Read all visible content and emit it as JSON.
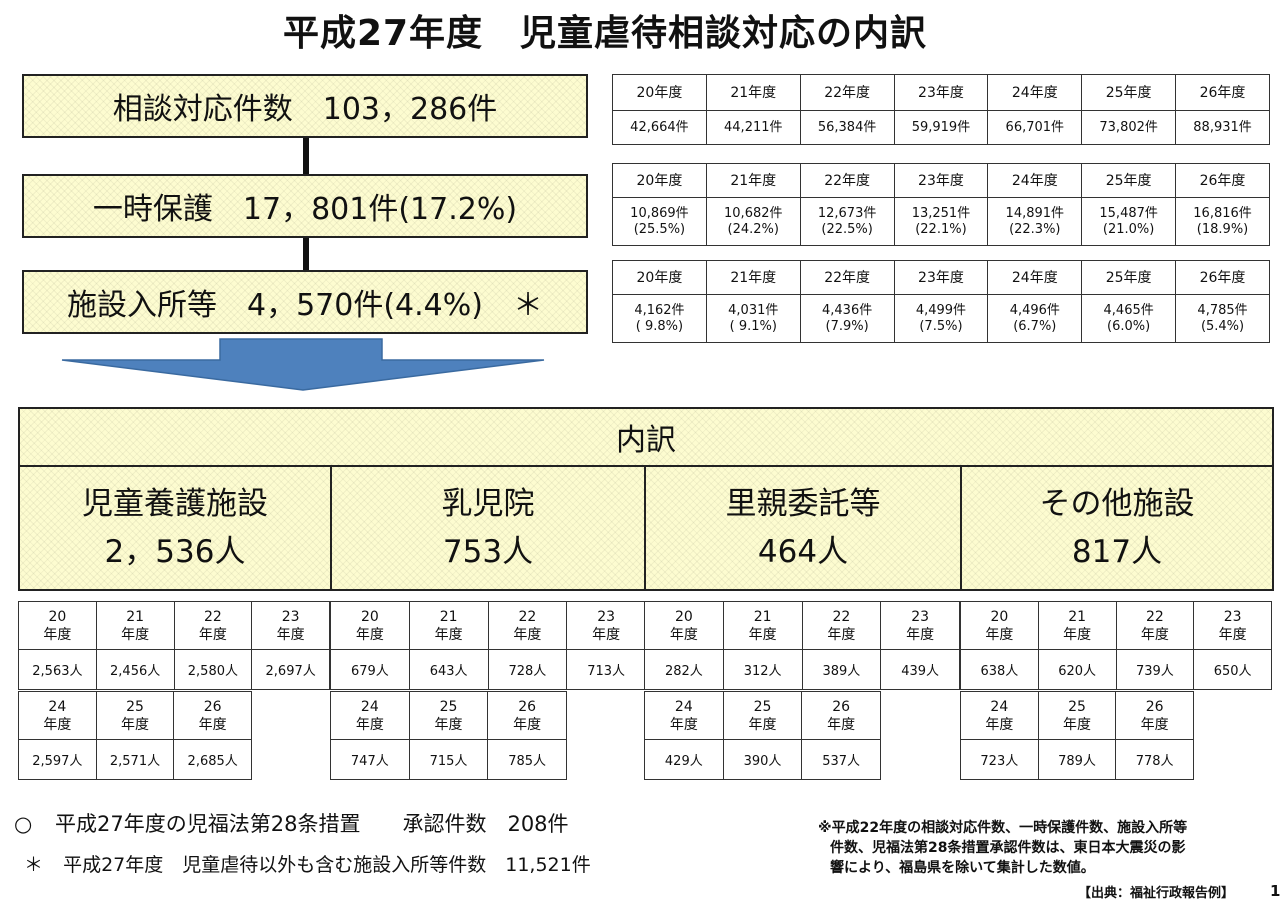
{
  "title": "平成27年度　児童虐待相談対応の内訳",
  "boxes": {
    "consult": "相談対応件数　103，286件",
    "protect": "一時保護　17，801件(17.2%)",
    "facility": "施設入所等　4，570件(4.4%)　＊"
  },
  "year_headers": [
    "20年度",
    "21年度",
    "22年度",
    "23年度",
    "24年度",
    "25年度",
    "26年度"
  ],
  "consult_table": [
    "42,664件",
    "44,211件",
    "56,384件",
    "59,919件",
    "66,701件",
    "73,802件",
    "88,931件"
  ],
  "protect_table": {
    "counts": [
      "10,869件",
      "10,682件",
      "12,673件",
      "13,251件",
      "14,891件",
      "15,487件",
      "16,816件"
    ],
    "pcts": [
      "(25.5%)",
      "(24.2%)",
      "(22.5%)",
      "(22.1%)",
      "(22.3%)",
      "(21.0%)",
      "(18.9%)"
    ]
  },
  "facility_table": {
    "counts": [
      "4,162件",
      "4,031件",
      "4,436件",
      "4,499件",
      "4,496件",
      "4,465件",
      "4,785件"
    ],
    "pcts": [
      "( 9.8%)",
      "( 9.1%)",
      "(7.9%)",
      "(7.5%)",
      "(6.7%)",
      "(6.0%)",
      "(5.4%)"
    ]
  },
  "breakdown": {
    "header": "内訳",
    "categories": [
      {
        "name": "児童養護施設",
        "value": "2，536人",
        "row1": [
          "2,563人",
          "2,456人",
          "2,580人",
          "2,697人"
        ],
        "row2": [
          "2,597人",
          "2,571人",
          "2,685人"
        ]
      },
      {
        "name": "乳児院",
        "value": "753人",
        "row1": [
          "679人",
          "643人",
          "728人",
          "713人"
        ],
        "row2": [
          "747人",
          "715人",
          "785人"
        ]
      },
      {
        "name": "里親委託等",
        "value": "464人",
        "row1": [
          "282人",
          "312人",
          "389人",
          "439人"
        ],
        "row2": [
          "429人",
          "390人",
          "537人"
        ]
      },
      {
        "name": "その他施設",
        "value": "817人",
        "row1": [
          "638人",
          "620人",
          "739人",
          "650人"
        ],
        "row2": [
          "723人",
          "789人",
          "778人"
        ]
      }
    ]
  },
  "grid_year_nums": {
    "row1": [
      "20",
      "21",
      "22",
      "23"
    ],
    "row2": [
      "24",
      "25",
      "26"
    ]
  },
  "grid_year_unit": "年度",
  "notes": {
    "circle": "○",
    "approval": "平成27年度の児福法第28条措置　　承認件数　208件",
    "asterisk": "＊",
    "other": "平成27年度　児童虐待以外も含む施設入所等件数　11,521件",
    "disclaimer1": "※平成22年度の相談対応件数、一時保護件数、施設入所等",
    "disclaimer2": "件数、児福法第28条措置承認件数は、東日本大震災の影",
    "disclaimer3": "響により、福島県を除いて集計した数値。",
    "source": "【出典：福祉行政報告例】",
    "page": "1"
  },
  "colors": {
    "box_fill": "#fdfcd0",
    "arrow": "#4e81bd",
    "arrow_border": "#3a6aa0"
  }
}
